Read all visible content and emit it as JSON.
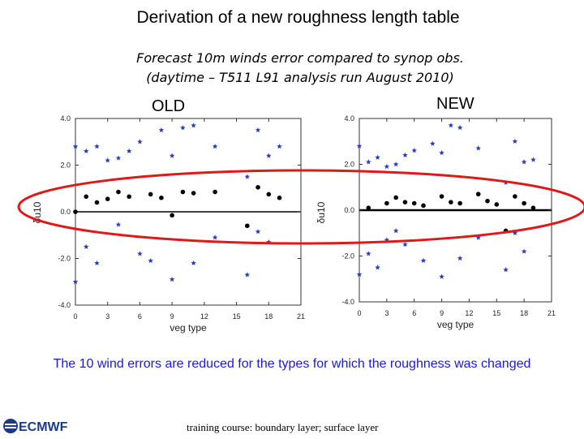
{
  "title": "Derivation of a new roughness length table",
  "subtitle_line1": "Forecast 10m winds error compared to synop obs.",
  "subtitle_line2": "(daytime – T511 L91 analysis run August 2010)",
  "label_old": "OLD",
  "label_new": "NEW",
  "conclusion": "The 10 wind errors are reduced for the types for which the roughness was changed",
  "footer": "training course: boundary layer; surface layer",
  "logo_text": "ECMWF",
  "colors": {
    "mean": "#000000",
    "stars": "#2a3cc0",
    "ellipse": "#e01818",
    "text_blue": "#1a1ad8"
  },
  "chart_data": [
    {
      "type": "scatter",
      "name_on_slide": "OLD",
      "xlabel": "veg type",
      "ylabel": "δu10",
      "xlim": [
        0,
        21
      ],
      "ylim": [
        -4,
        4
      ],
      "xticks": [
        0,
        3,
        6,
        9,
        12,
        15,
        18,
        21
      ],
      "yticks": [
        -4,
        -2,
        0,
        2,
        4
      ],
      "yticklabels": [
        "-4.0",
        "-2.0",
        "0.0",
        "2.0",
        "4.0"
      ],
      "zero_line": true,
      "series": [
        {
          "marker": "dot",
          "points": [
            [
              0,
              0
            ],
            [
              1,
              0.65
            ],
            [
              2,
              0.4
            ],
            [
              3,
              0.55
            ],
            [
              4,
              0.85
            ],
            [
              5,
              0.65
            ],
            [
              7,
              0.75
            ],
            [
              8,
              0.6
            ],
            [
              9,
              -0.15
            ],
            [
              10,
              0.85
            ],
            [
              11,
              0.8
            ],
            [
              13,
              0.85
            ],
            [
              16,
              -0.6
            ],
            [
              17,
              1.05
            ],
            [
              18,
              0.75
            ],
            [
              19,
              0.6
            ]
          ]
        },
        {
          "marker": "star",
          "points": [
            [
              0,
              2.8
            ],
            [
              1,
              2.6
            ],
            [
              2,
              2.8
            ],
            [
              3,
              2.2
            ],
            [
              4,
              2.3
            ],
            [
              5,
              2.6
            ],
            [
              6,
              3.0
            ],
            [
              8,
              3.5
            ],
            [
              9,
              2.4
            ],
            [
              10,
              3.6
            ],
            [
              11,
              3.7
            ],
            [
              13,
              2.8
            ],
            [
              16,
              1.5
            ],
            [
              17,
              3.5
            ],
            [
              18,
              2.4
            ],
            [
              19,
              2.8
            ],
            [
              0,
              -3.0
            ],
            [
              1,
              -1.5
            ],
            [
              2,
              -2.2
            ],
            [
              4,
              -0.55
            ],
            [
              6,
              -1.8
            ],
            [
              7,
              -2.1
            ],
            [
              9,
              -2.9
            ],
            [
              11,
              -2.2
            ],
            [
              13,
              -1.1
            ],
            [
              16,
              -2.7
            ],
            [
              17,
              -0.85
            ],
            [
              18,
              -1.3
            ]
          ]
        }
      ]
    },
    {
      "type": "scatter",
      "name_on_slide": "NEW",
      "xlabel": "veg type",
      "ylabel": "δu10",
      "xlim": [
        0,
        21
      ],
      "ylim": [
        -4,
        4
      ],
      "xticks": [
        0,
        3,
        6,
        9,
        12,
        15,
        18,
        21
      ],
      "yticks": [
        -4,
        -2,
        0,
        2,
        4
      ],
      "yticklabels": [
        "-4.0",
        "-2.0",
        "0.0",
        "2.0",
        "4.0"
      ],
      "zero_line": true,
      "series": [
        {
          "marker": "dot",
          "points": [
            [
              1,
              0.1
            ],
            [
              3,
              0.3
            ],
            [
              4,
              0.55
            ],
            [
              5,
              0.35
            ],
            [
              6,
              0.3
            ],
            [
              7,
              0.2
            ],
            [
              9,
              0.6
            ],
            [
              10,
              0.35
            ],
            [
              11,
              0.3
            ],
            [
              13,
              0.7
            ],
            [
              14,
              0.4
            ],
            [
              15,
              0.25
            ],
            [
              16,
              -0.9
            ],
            [
              17,
              0.6
            ],
            [
              18,
              0.3
            ],
            [
              19,
              0.1
            ]
          ]
        },
        {
          "marker": "star",
          "points": [
            [
              0,
              2.8
            ],
            [
              1,
              2.1
            ],
            [
              2,
              2.3
            ],
            [
              3,
              1.9
            ],
            [
              4,
              2.0
            ],
            [
              5,
              2.4
            ],
            [
              6,
              2.6
            ],
            [
              8,
              2.9
            ],
            [
              9,
              2.5
            ],
            [
              10,
              3.7
            ],
            [
              11,
              3.6
            ],
            [
              13,
              2.7
            ],
            [
              16,
              1.2
            ],
            [
              17,
              3.0
            ],
            [
              18,
              2.1
            ],
            [
              19,
              2.2
            ],
            [
              0,
              -2.8
            ],
            [
              1,
              -1.9
            ],
            [
              2,
              -2.5
            ],
            [
              3,
              -1.3
            ],
            [
              4,
              -0.9
            ],
            [
              5,
              -1.5
            ],
            [
              7,
              -2.2
            ],
            [
              9,
              -2.9
            ],
            [
              11,
              -2.1
            ],
            [
              13,
              -1.2
            ],
            [
              16,
              -2.6
            ],
            [
              17,
              -1.0
            ],
            [
              18,
              -1.8
            ]
          ]
        }
      ]
    }
  ]
}
